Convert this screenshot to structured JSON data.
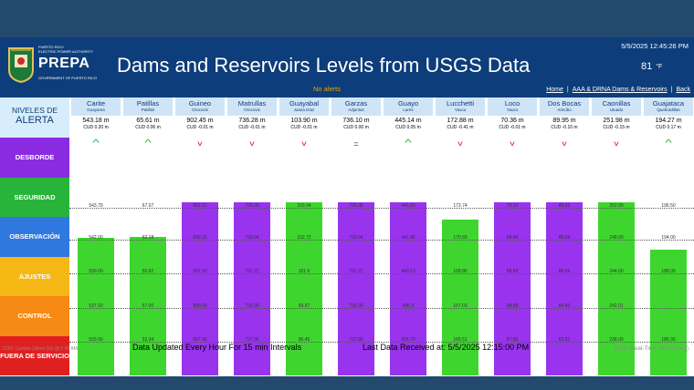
{
  "header": {
    "logo_small_top": "PUERTO RICO",
    "logo_small_mid": "ELECTRIC POWER AUTHORITY",
    "logo_text": "PREPA",
    "logo_small_bottom": "GOVERNMENT OF PUERTO RICO",
    "title": "Dams and Reservoirs Levels from USGS Data",
    "datetime": "5/5/2025 12:45:26 PM",
    "temperature": "81",
    "temperature_unit": "°F",
    "alerts": "No alerts",
    "links": [
      "Home",
      "AAA & DRNA Dams & Reservoirs",
      "Back"
    ]
  },
  "legend": {
    "niveles_line1": "NIVELES DE",
    "niveles_line2": "ALERTA",
    "bands": [
      {
        "label": "DESBORDE",
        "color": "#8a2be2"
      },
      {
        "label": "SEGURIDAD",
        "color": "#28b43a"
      },
      {
        "label": "OBSERVACIÓN",
        "color": "#2f78e0"
      },
      {
        "label": "AJUSTES",
        "color": "#f6b814"
      },
      {
        "label": "CONTROL",
        "color": "#f68a14"
      },
      {
        "label": "FUERA DE SERVICIO",
        "color": "#e02020"
      }
    ]
  },
  "reservoirs": [
    {
      "name": "Carite",
      "location": "Guayama",
      "level": "543.18 m",
      "cud": "CUD 0.20 m",
      "trend": "up",
      "status_color": "#3ed62e",
      "level_fraction": 0.775,
      "thresholds": [
        "543.79",
        "542.00",
        "539.00",
        "537.00",
        "533.00"
      ]
    },
    {
      "name": "Patillas",
      "location": "Patillas",
      "level": "65.61 m",
      "cud": "CUD 0.06 m",
      "trend": "up",
      "status_color": "#3ed62e",
      "level_fraction": 0.78,
      "thresholds": [
        "67.07",
        "62.18",
        "56.82",
        "57.00",
        "53.34"
      ]
    },
    {
      "name": "Guineo",
      "location": "Orocovis",
      "level": "902.45 m",
      "cud": "CUD -0.01 m",
      "trend": "down",
      "status_color": "#9933ee",
      "level_fraction": 0.955,
      "thresholds": [
        "902.21",
        "899.16",
        "897.33",
        "890.39",
        "897.96"
      ]
    },
    {
      "name": "Matrullas",
      "location": "Orocovis",
      "level": "736.28 m",
      "cud": "CUD -0.01 m",
      "trend": "down",
      "status_color": "#9933ee",
      "level_fraction": 0.955,
      "thresholds": [
        "736.09",
        "733.04",
        "731.22",
        "729.39",
        "727.86"
      ]
    },
    {
      "name": "Guayabal",
      "location": "Juana Díaz",
      "level": "103.90 m",
      "cud": "CUD -0.01 m",
      "trend": "down",
      "status_color": "#3ed62e",
      "level_fraction": 0.93,
      "thresholds": [
        "103.94",
        "102.72",
        "101.6",
        "99.97",
        "96.45"
      ]
    },
    {
      "name": "Garzas",
      "location": "Adjuntas",
      "level": "736.10 m",
      "cud": "CUD 0.00 m",
      "trend": "flat",
      "status_color": "#9933ee",
      "level_fraction": 0.955,
      "thresholds": [
        "736.08",
        "733.04",
        "731.22",
        "729.39",
        "727.86"
      ]
    },
    {
      "name": "Guayo",
      "location": "Lares",
      "level": "445.14 m",
      "cud": "CUD 0.05 m",
      "trend": "up",
      "status_color": "#9933ee",
      "level_fraction": 0.955,
      "thresholds": [
        "445.03",
        "441.96",
        "440.13",
        "436.3",
        "435.79"
      ]
    },
    {
      "name": "Lucchetti",
      "location": "Yauco",
      "level": "172.88 m",
      "cud": "CUD -0.41 m",
      "trend": "down",
      "status_color": "#3ed62e",
      "level_fraction": 0.875,
      "thresholds": [
        "173.74",
        "170.69",
        "168.86",
        "167.03",
        "165.51"
      ]
    },
    {
      "name": "Loco",
      "location": "Yauco",
      "level": "70.36 m",
      "cud": "CUD -0.01 m",
      "trend": "down",
      "status_color": "#9933ee",
      "level_fraction": 0.955,
      "thresholds": [
        "70.10",
        "69.49",
        "68.88",
        "68.58",
        "67.96"
      ]
    },
    {
      "name": "Dos Bocas",
      "location": "Arecibo",
      "level": "89.95 m",
      "cud": "CUD -0.10 m",
      "trend": "down",
      "status_color": "#9933ee",
      "level_fraction": 0.955,
      "thresholds": [
        "89.92",
        "88.09",
        "86.26",
        "84.43",
        "82.91"
      ]
    },
    {
      "name": "Caonillas",
      "location": "Utuado",
      "level": "251.98 m",
      "cud": "CUD -0.15 m",
      "trend": "down",
      "status_color": "#3ed62e",
      "level_fraction": 0.945,
      "thresholds": [
        "252.00",
        "248.00",
        "244.00",
        "242.01",
        "238.00"
      ]
    },
    {
      "name": "Guajataca",
      "location": "Quebradillas",
      "level": "194.27 m",
      "cud": "CUD 0.17 m",
      "trend": "up",
      "status_color": "#3ed62e",
      "level_fraction": 0.71,
      "thresholds": [
        "196.50",
        "194.00",
        "188.00",
        "",
        "186.00"
      ]
    }
  ],
  "footer": {
    "left": "CUD: Cambio Último Día @ 5:00 AM",
    "mid": "Data Updated Every Hour For 15 min Intervals",
    "received": "Last Data Received at:   5/5/2025 12:15:00 PM",
    "right": "(Near Real-Time Monitoring)"
  }
}
